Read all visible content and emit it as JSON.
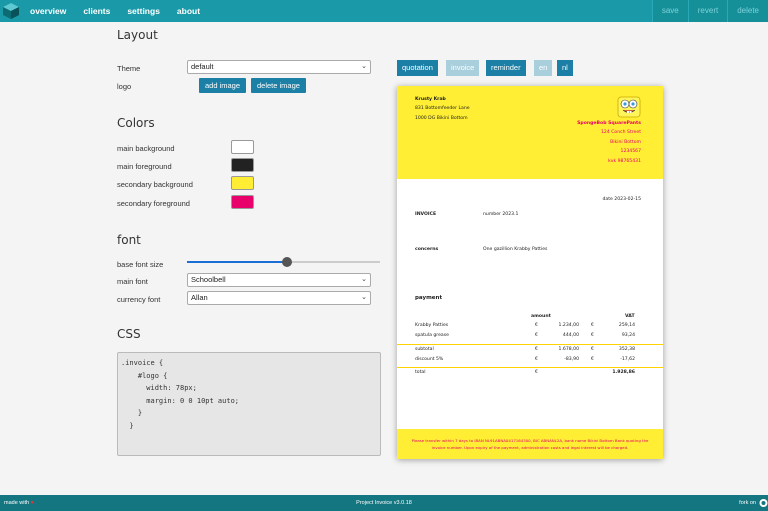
{
  "nav": {
    "items": [
      "overview",
      "clients",
      "settings",
      "about"
    ]
  },
  "top_actions": [
    "save",
    "revert",
    "delete"
  ],
  "layout": {
    "heading": "Layout",
    "theme_label": "Theme",
    "theme_value": "default",
    "logo_label": "logo",
    "add_image": "add image",
    "delete_image": "delete image"
  },
  "colors": {
    "heading": "Colors",
    "items": [
      {
        "label": "main background",
        "color": "#ffffff"
      },
      {
        "label": "main foreground",
        "color": "#222222"
      },
      {
        "label": "secondary background",
        "color": "#ffee33"
      },
      {
        "label": "secondary foreground",
        "color": "#e8006b"
      }
    ]
  },
  "font": {
    "heading": "font",
    "base_size_label": "base font size",
    "base_size_fraction": 0.52,
    "main_font_label": "main font",
    "main_font_value": "Schoolbell",
    "currency_font_label": "currency font",
    "currency_font_value": "Allan"
  },
  "css": {
    "heading": "CSS",
    "code": ".invoice {\n    #logo {\n      width: 78px;\n      margin: 0 0 10pt auto;\n    }\n  }"
  },
  "template_buttons": {
    "quotation": "quotation",
    "invoice": "invoice",
    "reminder": "reminder",
    "en": "en",
    "nl": "nl"
  },
  "invoice": {
    "from_lines": [
      "Krusty Krab",
      "831 Bottomfeeder Lane",
      "1000 DG Bikini Bottom"
    ],
    "to_lines": [
      "SpongeBob SquarePants",
      "124 Conch Street",
      "Bikini Bottom",
      "1234567",
      "kvk 98765431"
    ],
    "date": "date 2023-02-15",
    "title": "INVOICE",
    "number": "number 2023.1",
    "concerns_label": "concerns",
    "concerns_value": "One gazillion Krabby Patties",
    "payment_label": "payment",
    "col_amount": "amount",
    "col_vat": "VAT",
    "rows": [
      {
        "name": "Krabby Patties",
        "cur1": "€",
        "amount": "1.234,00",
        "cur2": "€",
        "vat": "259,14"
      },
      {
        "name": "spatula grease",
        "cur1": "€",
        "amount": "444,00",
        "cur2": "€",
        "vat": "93,24"
      }
    ],
    "subtotal": {
      "name": "subtotal",
      "cur1": "€",
      "amount": "1.678,00",
      "cur2": "€",
      "vat": "352,38"
    },
    "discount": {
      "name": "discount 5%",
      "cur1": "€",
      "amount": "-83,90",
      "cur2": "€",
      "vat": "-17,62"
    },
    "total": {
      "name": "total",
      "cur1": "€",
      "amount": "1.928,86"
    },
    "footer_line1": "Please transfer within 7 days to IBAN NL91ABNA0417164300, BIC ABNANL2A, bank name Bikini Bottom Bank quoting the",
    "footer_line2": "invoice number. Upon expiry of the payment, administration costs and legal interest will be charged."
  },
  "bottom": {
    "made_with": "made with",
    "heart": "♥",
    "version": "Project Invoice v3.0.18",
    "fork": "fork on"
  }
}
